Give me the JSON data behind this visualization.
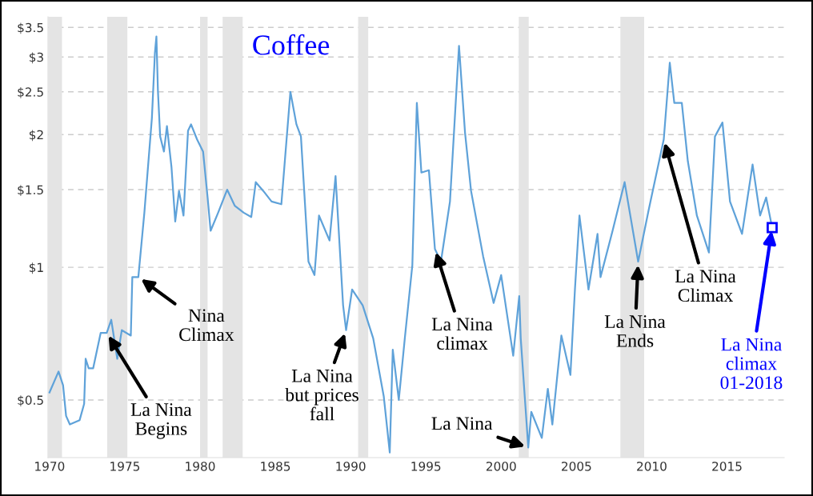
{
  "chart_data": {
    "type": "line",
    "title": "Coffee",
    "x": [
      1970.0,
      1970.6,
      1970.9,
      1971.1,
      1971.35,
      1972.0,
      1972.3,
      1972.4,
      1972.6,
      1972.9,
      1973.4,
      1973.8,
      1974.1,
      1974.5,
      1974.8,
      1975.4,
      1975.5,
      1975.9,
      1976.3,
      1976.8,
      1977.0,
      1977.1,
      1977.2,
      1977.35,
      1977.6,
      1977.8,
      1978.1,
      1978.35,
      1978.6,
      1978.9,
      1979.2,
      1979.4,
      1979.8,
      1980.2,
      1980.5,
      1980.7,
      1981.2,
      1981.8,
      1982.3,
      1982.9,
      1983.4,
      1983.7,
      1984.2,
      1984.75,
      1985.4,
      1986.0,
      1986.4,
      1986.7,
      1987.2,
      1987.6,
      1987.9,
      1988.6,
      1989.0,
      1989.5,
      1989.7,
      1990.1,
      1990.8,
      1991.5,
      1992.2,
      1992.6,
      1992.8,
      1993.2,
      1993.6,
      1994.1,
      1994.4,
      1994.7,
      1995.2,
      1995.6,
      1996.0,
      1996.6,
      1997.2,
      1997.6,
      1998.0,
      1998.8,
      1999.5,
      2000.0,
      2000.8,
      2001.2,
      2001.3,
      2001.8,
      2002.0,
      2002.7,
      2003.1,
      2003.4,
      2004.0,
      2004.6,
      2004.9,
      2005.2,
      2005.8,
      2006.4,
      2006.6,
      2007.4,
      2008.2,
      2009.1,
      2009.8,
      2010.8,
      2011.2,
      2011.5,
      2012.0,
      2012.4,
      2013.0,
      2013.8,
      2014.2,
      2014.7,
      2015.2,
      2016.0,
      2016.7,
      2017.2,
      2017.6,
      2018.0
    ],
    "series": [
      {
        "color": "#5fa2d9",
        "values": [
          0.52,
          0.58,
          0.54,
          0.46,
          0.44,
          0.45,
          0.49,
          0.62,
          0.59,
          0.59,
          0.71,
          0.71,
          0.76,
          0.62,
          0.72,
          0.7,
          0.95,
          0.95,
          1.33,
          2.18,
          3.06,
          3.34,
          2.52,
          1.98,
          1.83,
          2.09,
          1.69,
          1.27,
          1.49,
          1.31,
          2.04,
          2.11,
          1.95,
          1.83,
          1.44,
          1.21,
          1.33,
          1.5,
          1.38,
          1.33,
          1.3,
          1.56,
          1.49,
          1.41,
          1.39,
          2.5,
          2.11,
          1.98,
          1.03,
          0.96,
          1.31,
          1.15,
          1.61,
          0.82,
          0.72,
          0.89,
          0.82,
          0.69,
          0.51,
          0.38,
          0.65,
          0.5,
          0.69,
          1.01,
          2.36,
          1.64,
          1.66,
          1.1,
          1.03,
          1.41,
          3.18,
          2.02,
          1.49,
          1.06,
          0.83,
          0.96,
          0.63,
          0.86,
          0.69,
          0.39,
          0.47,
          0.41,
          0.53,
          0.44,
          0.7,
          0.57,
          0.89,
          1.31,
          0.89,
          1.19,
          0.95,
          1.21,
          1.56,
          1.03,
          1.35,
          1.95,
          2.91,
          2.36,
          2.36,
          1.74,
          1.31,
          1.08,
          1.98,
          2.13,
          1.41,
          1.19,
          1.71,
          1.31,
          1.44,
          1.23
        ]
      }
    ],
    "log": true,
    "xlim": [
      1969.9,
      2018.8
    ],
    "xticks": [
      1970,
      1975,
      1980,
      1985,
      1990,
      1995,
      2000,
      2005,
      2010,
      2015
    ],
    "ylim": [
      0.37,
      3.7
    ],
    "yticks": [
      {
        "value": 0.5,
        "label": "$0.5"
      },
      {
        "value": 1,
        "label": "$1"
      },
      {
        "value": 1.5,
        "label": "$1.5"
      },
      {
        "value": 2,
        "label": "$2"
      },
      {
        "value": 2.5,
        "label": "$2.5"
      },
      {
        "value": 3,
        "label": "$3"
      },
      {
        "value": 3.5,
        "label": "$3.5"
      }
    ],
    "grid": "y",
    "bands": [
      {
        "axis": "x",
        "from": 1969.92,
        "to": 1970.83,
        "color": "#e4e4e4"
      },
      {
        "axis": "x",
        "from": 1973.83,
        "to": 1975.17,
        "color": "#e4e4e4"
      },
      {
        "axis": "x",
        "from": 1980.0,
        "to": 1980.5,
        "color": "#e4e4e4"
      },
      {
        "axis": "x",
        "from": 1981.5,
        "to": 1982.83,
        "color": "#e4e4e4"
      },
      {
        "axis": "x",
        "from": 1990.5,
        "to": 1991.17,
        "color": "#e4e4e4"
      },
      {
        "axis": "x",
        "from": 2001.17,
        "to": 2001.83,
        "color": "#e4e4e4"
      },
      {
        "axis": "x",
        "from": 2007.92,
        "to": 2009.5,
        "color": "#e4e4e4"
      }
    ],
    "annotations": [
      {
        "text": "La Nina\nBegins",
        "x": 1973.8,
        "y": 0.71
      },
      {
        "text": "Nina\nClimax",
        "x": 1975.9,
        "y": 0.95
      },
      {
        "text": "La Nina\nbut prices\nfall",
        "x": 1989.7,
        "y": 0.72
      },
      {
        "text": "La Nina\nclimax",
        "x": 1995.6,
        "y": 1.1
      },
      {
        "text": "La Nina",
        "x": 2001.8,
        "y": 0.39
      },
      {
        "text": "La Nina\nEnds",
        "x": 2009.1,
        "y": 1.03
      },
      {
        "text": "La Nina\nClimax",
        "x": 2010.8,
        "y": 1.95
      },
      {
        "text": "La Nina\nclimax\n01-2018",
        "x": 2018.0,
        "y": 1.23
      }
    ]
  }
}
